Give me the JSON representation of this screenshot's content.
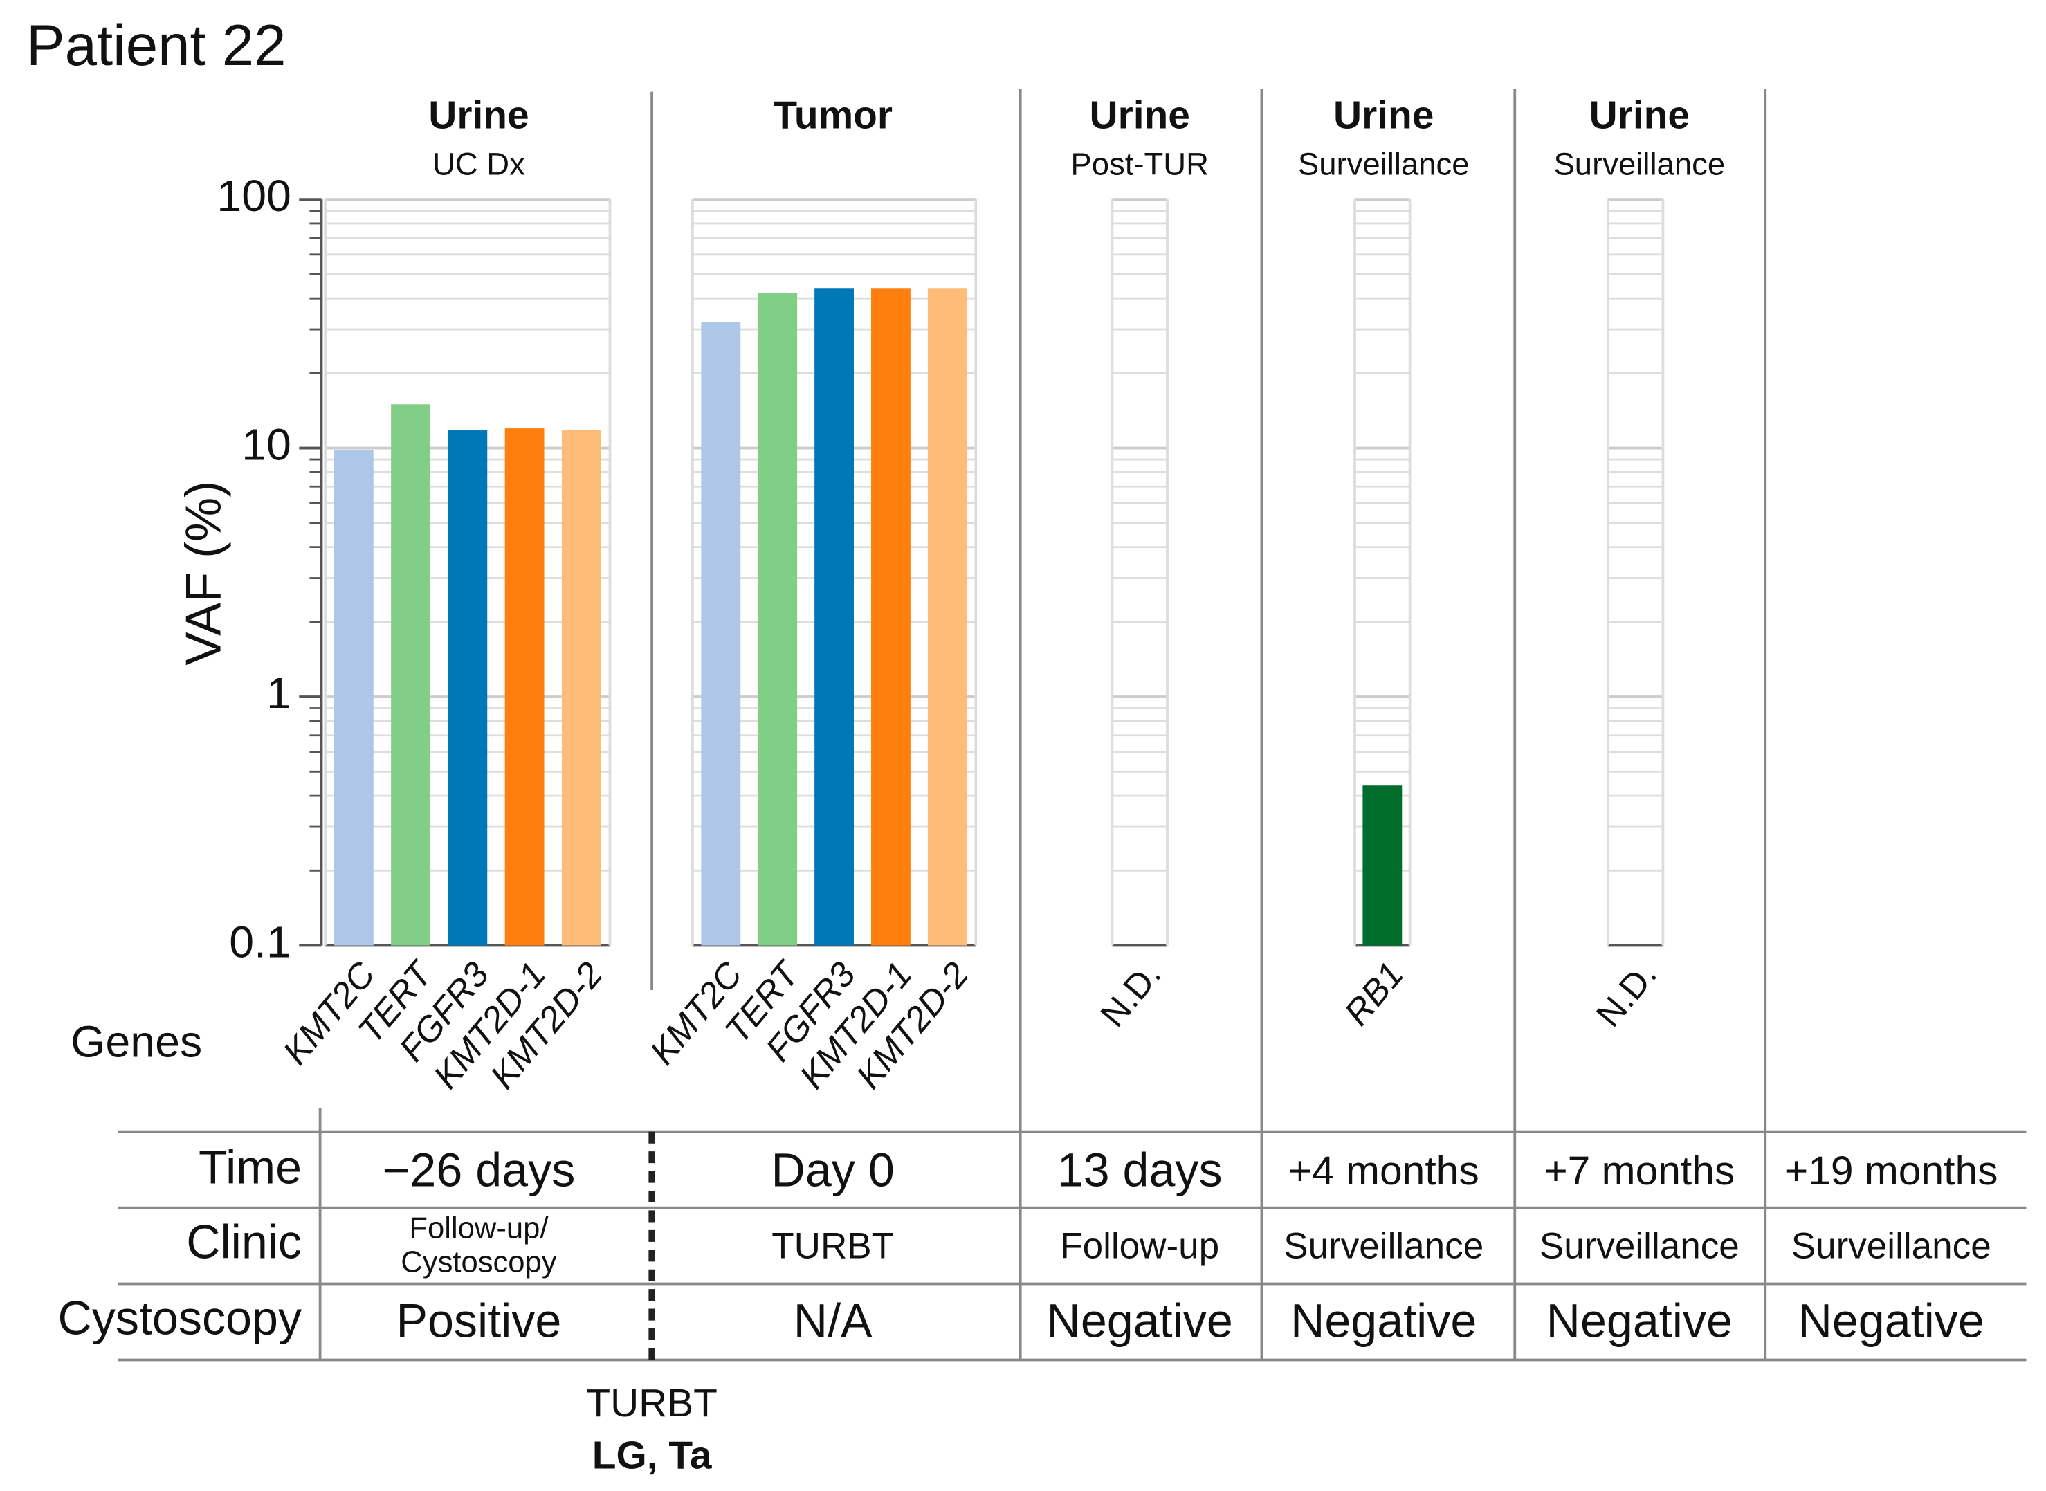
{
  "title": "Patient 22",
  "chart_data": [
    {
      "type": "bar",
      "title": "Urine",
      "subtitle": "UC Dx",
      "ylabel": "VAF (%)",
      "xlabel": "Genes",
      "categories": [
        "KMT2C",
        "TERT",
        "FGFR3",
        "KMT2D-1",
        "KMT2D-2"
      ],
      "italic_categories": true,
      "values": [
        9.8,
        15,
        11.8,
        12,
        11.8
      ],
      "colors": [
        "#aec7e8",
        "#81cf86",
        "#0077b6",
        "#ff7f0e",
        "#ffbb78"
      ],
      "ylim": [
        0.1,
        100
      ],
      "yticks": [
        0.1,
        1,
        10,
        100
      ],
      "yminorticks": [
        0.2,
        0.3,
        0.4,
        0.5,
        0.6,
        0.7,
        0.8,
        0.9,
        2,
        3,
        4,
        5,
        6,
        7,
        8,
        9,
        20,
        30,
        40,
        50,
        60,
        70,
        80,
        90
      ],
      "log_scale": true,
      "grid": true
    },
    {
      "type": "bar",
      "title": "Tumor",
      "categories": [
        "KMT2C",
        "TERT",
        "FGFR3",
        "KMT2D-1",
        "KMT2D-2"
      ],
      "italic_categories": true,
      "values": [
        32,
        42,
        44,
        44,
        44
      ],
      "colors": [
        "#aec7e8",
        "#81cf86",
        "#0077b6",
        "#ff7f0e",
        "#ffbb78"
      ],
      "ylim": [
        0.1,
        100
      ],
      "log_scale": true,
      "grid": true
    },
    {
      "type": "bar",
      "title": "Urine",
      "subtitle": "Post-TUR",
      "categories": [
        "N.D."
      ],
      "italic_categories": false,
      "values": [
        null
      ],
      "ylim": [
        0.1,
        100
      ],
      "log_scale": true,
      "grid": true
    },
    {
      "type": "bar",
      "title": "Urine",
      "subtitle": "Surveillance",
      "categories": [
        "RB1"
      ],
      "italic_categories": true,
      "values": [
        0.44
      ],
      "colors": [
        "#006d2c"
      ],
      "ylim": [
        0.1,
        100
      ],
      "log_scale": true,
      "grid": true
    },
    {
      "type": "bar",
      "title": "Urine",
      "subtitle": "Surveillance",
      "categories": [
        "N.D."
      ],
      "italic_categories": false,
      "values": [
        null
      ],
      "ylim": [
        0.1,
        100
      ],
      "log_scale": true,
      "grid": true
    }
  ],
  "table": {
    "row_labels": [
      "Time",
      "Clinic",
      "Cystoscopy"
    ],
    "rows": [
      [
        "−26 days",
        "Day 0",
        "13 days",
        "+4 months",
        "+7 months",
        "+19 months"
      ],
      [
        [
          "Follow-up/",
          "Cystoscopy"
        ],
        "TURBT",
        "Follow-up",
        "Surveillance",
        "Surveillance",
        "Surveillance"
      ],
      [
        "Positive",
        "N/A",
        "Negative",
        "Negative",
        "Negative",
        "Negative"
      ]
    ]
  },
  "annotation": {
    "line1": "TURBT",
    "line2": "LG, Ta"
  }
}
